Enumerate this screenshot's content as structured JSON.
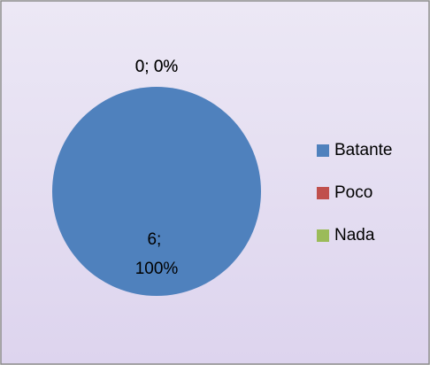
{
  "chart_data": {
    "type": "pie",
    "categories": [
      "Batante",
      "Poco",
      "Nada"
    ],
    "values": [
      6,
      0,
      0
    ],
    "value_labels": [
      "6; 100%",
      "0; 0%",
      "0; 0%"
    ],
    "colors": [
      "#4f81bd",
      "#c0504d",
      "#9bbb59"
    ],
    "legend": "right"
  }
}
